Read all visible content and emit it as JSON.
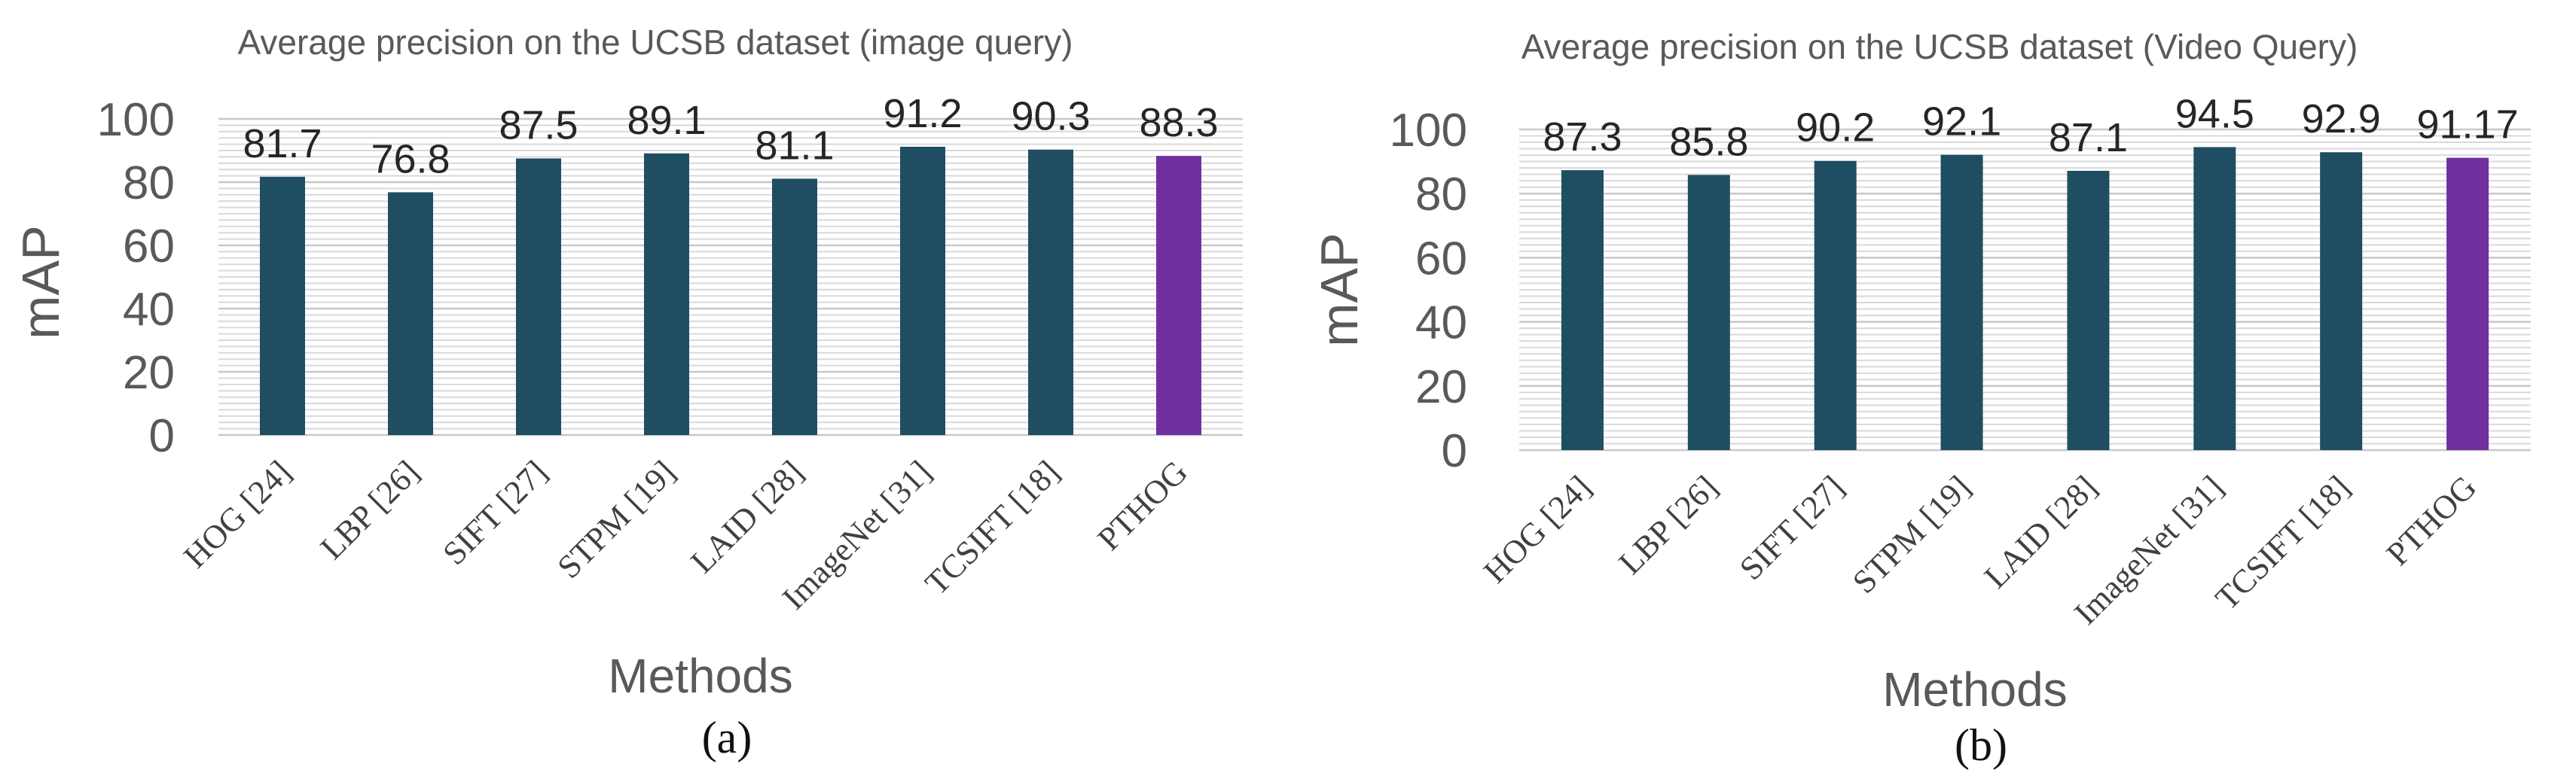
{
  "chart_data": [
    {
      "type": "bar",
      "title": "Average precision on the UCSB dataset (image query)",
      "xlabel": "Methods",
      "ylabel": "mAP",
      "caption": "(a)",
      "categories": [
        "HOG [24]",
        "LBP [26]",
        "SIFT [27]",
        "STPM [19]",
        "LAID [28]",
        "ImageNet [31]",
        "TCSIFT [18]",
        "PTHOG"
      ],
      "values": [
        81.7,
        76.8,
        87.5,
        89.1,
        81.1,
        91.2,
        90.3,
        88.3
      ],
      "value_labels": [
        "81.7",
        "76.8",
        "87.5",
        "89.1",
        "81.1",
        "91.2",
        "90.3",
        "88.3"
      ],
      "yticks": [
        "0",
        "20",
        "40",
        "60",
        "80",
        "100"
      ],
      "ylim": [
        0,
        100
      ],
      "grid": true,
      "legend": "none",
      "bar_color": "#1f4e63",
      "highlight_color": "#7030a0",
      "highlight_index": 7
    },
    {
      "type": "bar",
      "title": "Average precision on the UCSB dataset (Video Query)",
      "xlabel": "Methods",
      "ylabel": "mAP",
      "caption": "(b)",
      "categories": [
        "HOG [24]",
        "LBP [26]",
        "SIFT [27]",
        "STPM [19]",
        "LAID [28]",
        "ImageNet [31]",
        "TCSIFT [18]",
        "PTHOG"
      ],
      "values": [
        87.3,
        85.8,
        90.2,
        92.1,
        87.1,
        94.5,
        92.9,
        91.17
      ],
      "value_labels": [
        "87.3",
        "85.8",
        "90.2",
        "92.1",
        "87.1",
        "94.5",
        "92.9",
        "91.17"
      ],
      "yticks": [
        "0",
        "20",
        "40",
        "60",
        "80",
        "100"
      ],
      "ylim": [
        0,
        100
      ],
      "grid": true,
      "legend": "none",
      "bar_color": "#1f4e63",
      "highlight_color": "#7030a0",
      "highlight_index": 7
    }
  ]
}
